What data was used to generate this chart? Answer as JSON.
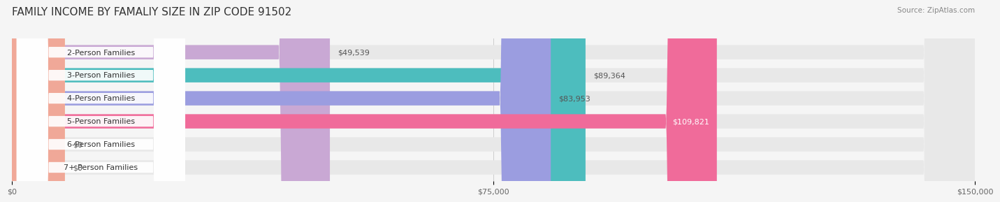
{
  "title": "FAMILY INCOME BY FAMALIY SIZE IN ZIP CODE 91502",
  "source": "Source: ZipAtlas.com",
  "categories": [
    "2-Person Families",
    "3-Person Families",
    "4-Person Families",
    "5-Person Families",
    "6-Person Families",
    "7+ Person Families"
  ],
  "values": [
    49539,
    89364,
    83953,
    109821,
    0,
    0
  ],
  "bar_colors": [
    "#c9a8d4",
    "#4dbdbe",
    "#9b9de0",
    "#f06b9a",
    "#f5c999",
    "#f0a898"
  ],
  "label_colors": [
    "#555555",
    "#555555",
    "#555555",
    "#ffffff",
    "#555555",
    "#555555"
  ],
  "value_labels": [
    "$49,539",
    "$89,364",
    "$83,953",
    "$109,821",
    "$0",
    "$0"
  ],
  "x_max": 150000,
  "x_tick_labels": [
    "$0",
    "$75,000",
    "$150,000"
  ],
  "bg_color": "#f5f5f5",
  "bar_bg_color": "#e8e8e8",
  "title_fontsize": 11,
  "source_fontsize": 7.5,
  "label_fontsize": 8,
  "value_fontsize": 8
}
